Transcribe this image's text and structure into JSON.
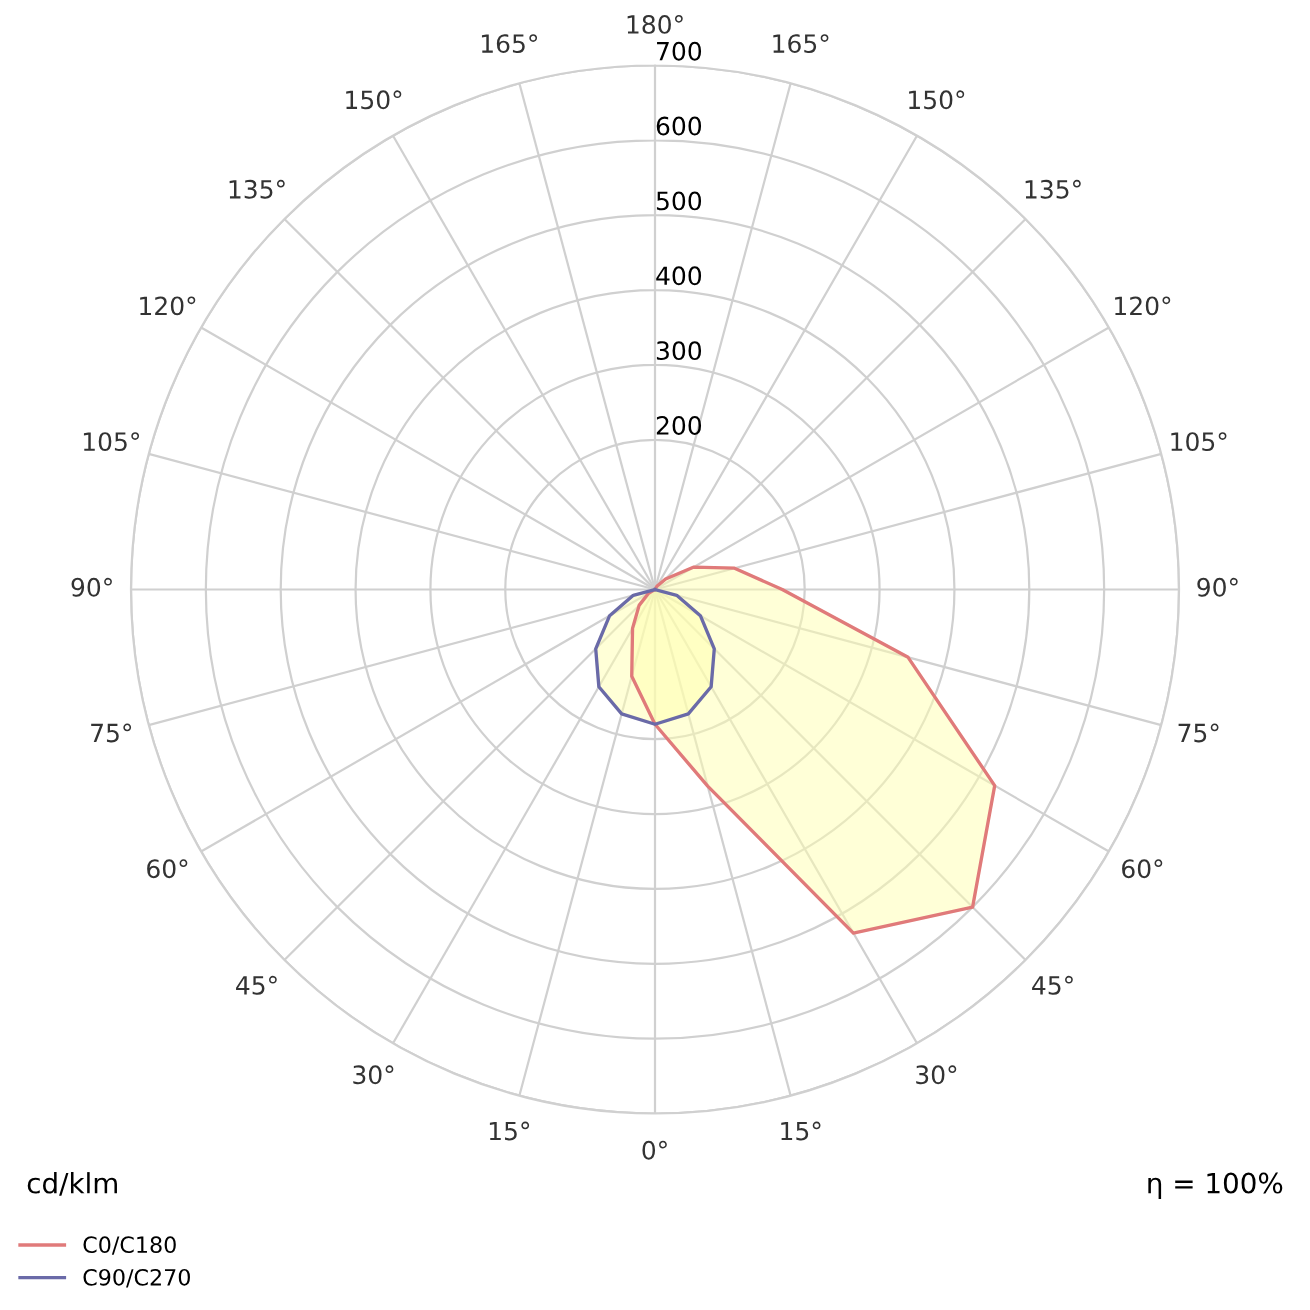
{
  "chart_data": {
    "type": "radar",
    "categories": [
      "180°",
      "165°",
      "150°",
      "135°",
      "120°",
      "105°",
      "90°",
      "75°",
      "60°",
      "45°",
      "30°",
      "15°",
      "0°",
      "15°",
      "30°",
      "45°",
      "60°",
      "75°",
      "90°",
      "105°",
      "120°",
      "135°",
      "150°",
      "165°"
    ],
    "series": [
      {
        "name": "C0/C180",
        "color": "#e07a7a",
        "values": [
          0,
          0,
          5,
          20,
          60,
          110,
          170,
          350,
          524,
          600,
          530,
          272,
          180,
          120,
          60,
          30,
          10,
          0,
          0,
          0,
          0,
          0,
          0,
          0
        ]
      },
      {
        "name": "C90/C270",
        "color": "#6a6aa8",
        "values": [
          0,
          0,
          0,
          0,
          0,
          0,
          0,
          30,
          70,
          112,
          150,
          172,
          180,
          172,
          150,
          112,
          70,
          30,
          0,
          0,
          0,
          0,
          0,
          0
        ]
      }
    ],
    "ylim": [
      0,
      700
    ],
    "yticks": [
      200,
      300,
      400,
      500,
      600,
      700
    ],
    "grid": true,
    "legend": "bottom left",
    "annotations": [
      "cd/klm",
      "η = 100%"
    ]
  }
}
